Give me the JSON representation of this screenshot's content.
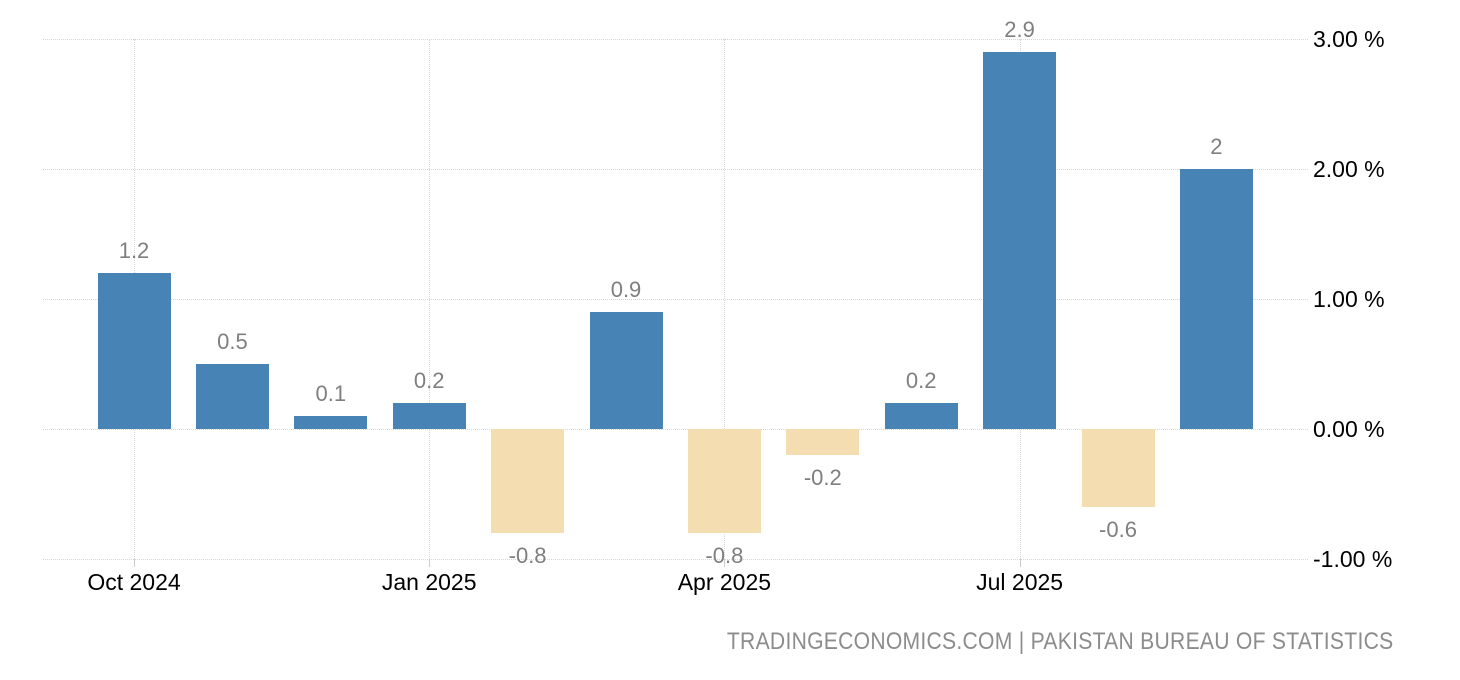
{
  "chart_data": {
    "type": "bar",
    "values": [
      1.2,
      0.5,
      0.1,
      0.2,
      -0.8,
      0.9,
      -0.8,
      -0.2,
      0.2,
      2.9,
      -0.6,
      2
    ],
    "bar_labels": [
      "1.2",
      "0.5",
      "0.1",
      "0.2",
      "-0.8",
      "0.9",
      "-0.8",
      "-0.2",
      "0.2",
      "2.9",
      "-0.6",
      "2"
    ],
    "x_tick_labels": [
      "Oct 2024",
      "Jan 2025",
      "Apr 2025",
      "Jul 2025"
    ],
    "x_tick_bar_indexes": [
      0,
      3,
      6,
      9
    ],
    "y_tick_labels": [
      "3.00 %",
      "2.00 %",
      "1.00 %",
      "0.00 %",
      "-1.00 %"
    ],
    "y_tick_values": [
      3,
      2,
      1,
      0,
      -1
    ],
    "ylim": [
      -1,
      3
    ],
    "grid": true,
    "legend": "none",
    "attribution": "TRADINGECONOMICS.COM | PAKISTAN BUREAU OF STATISTICS",
    "colors": {
      "bar_positive": "#4783B4",
      "bar_negative": "#F4DDB1",
      "gridline": "#D6D6D6",
      "tick": "#CCCCCC",
      "value_label": "#7F7F7F",
      "axis_label": "#000000",
      "attribution_text": "#8C8C8C",
      "background": "#FFFFFF"
    }
  }
}
